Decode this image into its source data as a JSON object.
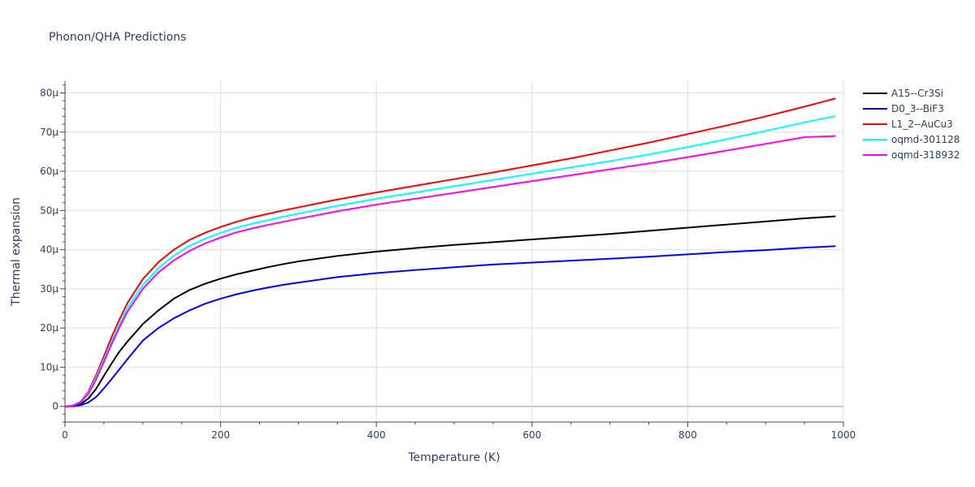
{
  "chart_data": {
    "type": "line",
    "title": "Phonon/QHA Predictions",
    "xlabel": "Temperature (K)",
    "ylabel": "Thermal expansion",
    "xlim": [
      0,
      1000
    ],
    "ylim": [
      -4,
      83
    ],
    "xticks": [
      0,
      200,
      400,
      600,
      800,
      1000
    ],
    "yticks": [
      0,
      10,
      20,
      30,
      40,
      50,
      60,
      70,
      80
    ],
    "ytick_labels": [
      "0",
      "10μ",
      "20μ",
      "30μ",
      "40μ",
      "50μ",
      "60μ",
      "70μ",
      "80μ"
    ],
    "grid": true,
    "legend": "top-right",
    "series": [
      {
        "name": "A15--Cr3Si",
        "color": "#000000",
        "x": [
          0,
          10,
          20,
          30,
          40,
          50,
          60,
          70,
          80,
          100,
          120,
          140,
          160,
          180,
          200,
          220,
          240,
          260,
          280,
          300,
          350,
          400,
          450,
          500,
          550,
          600,
          650,
          700,
          750,
          800,
          850,
          900,
          950,
          990
        ],
        "y": [
          0,
          0.1,
          0.6,
          2.0,
          4.5,
          7.8,
          11.0,
          14.0,
          16.5,
          21.0,
          24.5,
          27.5,
          29.7,
          31.3,
          32.6,
          33.7,
          34.6,
          35.5,
          36.3,
          37.0,
          38.4,
          39.5,
          40.4,
          41.2,
          41.9,
          42.6,
          43.3,
          44.0,
          44.8,
          45.6,
          46.4,
          47.2,
          48.0,
          48.5
        ]
      },
      {
        "name": "D0_3--BiF3",
        "color": "#0000ff",
        "x": [
          0,
          10,
          20,
          30,
          40,
          50,
          60,
          70,
          80,
          100,
          120,
          140,
          160,
          180,
          200,
          220,
          240,
          260,
          280,
          300,
          350,
          400,
          450,
          500,
          550,
          600,
          650,
          700,
          750,
          800,
          850,
          900,
          950,
          990
        ],
        "y": [
          0,
          0.05,
          0.3,
          1.0,
          2.4,
          4.6,
          7.0,
          9.5,
          12.0,
          16.8,
          20.0,
          22.5,
          24.5,
          26.2,
          27.5,
          28.6,
          29.5,
          30.3,
          31.0,
          31.6,
          33.0,
          34.0,
          34.8,
          35.5,
          36.2,
          36.7,
          37.2,
          37.7,
          38.2,
          38.8,
          39.4,
          39.9,
          40.5,
          40.9
        ]
      },
      {
        "name": "L1_2--AuCu3",
        "color": "#ff0000",
        "x": [
          0,
          10,
          20,
          30,
          40,
          50,
          60,
          70,
          80,
          100,
          120,
          140,
          160,
          180,
          200,
          220,
          240,
          260,
          280,
          300,
          350,
          400,
          450,
          500,
          550,
          600,
          650,
          700,
          750,
          800,
          850,
          900,
          950,
          990
        ],
        "y": [
          0,
          0.2,
          1.2,
          3.8,
          8.0,
          12.8,
          17.8,
          22.2,
          26.3,
          32.5,
          36.8,
          40.0,
          42.5,
          44.3,
          45.8,
          47.1,
          48.2,
          49.1,
          50.0,
          50.8,
          52.8,
          54.6,
          56.3,
          58.0,
          59.7,
          61.5,
          63.3,
          65.3,
          67.3,
          69.5,
          71.7,
          74.0,
          76.5,
          78.6
        ]
      },
      {
        "name": "oqmd-301128",
        "color": "#00ffff",
        "x": [
          0,
          10,
          20,
          30,
          40,
          50,
          60,
          70,
          80,
          100,
          120,
          140,
          160,
          180,
          200,
          220,
          240,
          260,
          280,
          300,
          350,
          400,
          450,
          500,
          550,
          600,
          650,
          700,
          750,
          800,
          850,
          900,
          950,
          990
        ],
        "y": [
          0,
          0.2,
          1.1,
          3.5,
          7.4,
          12.0,
          16.7,
          21.0,
          25.0,
          31.0,
          35.3,
          38.5,
          41.0,
          42.8,
          44.3,
          45.6,
          46.6,
          47.5,
          48.4,
          49.2,
          51.2,
          53.0,
          54.6,
          56.2,
          57.8,
          59.4,
          61.0,
          62.6,
          64.3,
          66.2,
          68.2,
          70.3,
          72.5,
          74.1
        ]
      },
      {
        "name": "oqmd-318932",
        "color": "#ff00ff",
        "x": [
          0,
          10,
          20,
          30,
          40,
          50,
          60,
          70,
          80,
          100,
          120,
          140,
          160,
          180,
          200,
          220,
          240,
          260,
          280,
          300,
          350,
          400,
          450,
          500,
          550,
          600,
          650,
          700,
          750,
          800,
          850,
          900,
          950,
          990
        ],
        "y": [
          0,
          0.2,
          1.0,
          3.2,
          6.9,
          11.4,
          16.0,
          20.2,
          24.1,
          30.0,
          34.2,
          37.3,
          39.7,
          41.6,
          43.1,
          44.4,
          45.4,
          46.3,
          47.1,
          47.9,
          49.8,
          51.5,
          53.0,
          54.5,
          56.0,
          57.5,
          59.0,
          60.5,
          62.0,
          63.6,
          65.3,
          67.0,
          68.7,
          69.0
        ]
      }
    ]
  }
}
